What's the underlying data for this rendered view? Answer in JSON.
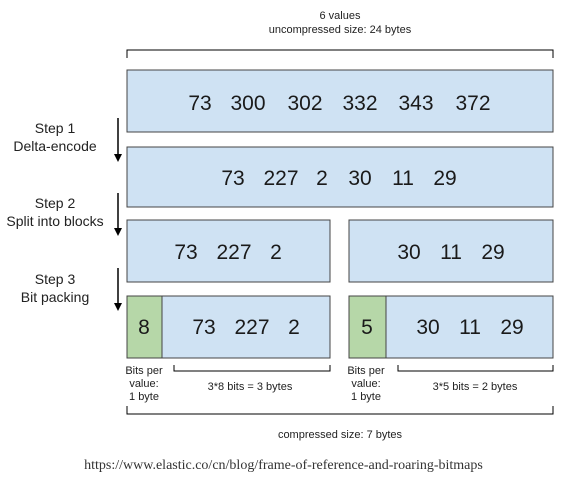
{
  "top": {
    "line1": "6 values",
    "line2": "uncompressed size: 24 bytes"
  },
  "rows": {
    "original": [
      "73",
      "300",
      "302",
      "332",
      "343",
      "372"
    ],
    "delta": [
      "73",
      "227",
      "2",
      "30",
      "11",
      "29"
    ],
    "block_left": [
      "73",
      "227",
      "2"
    ],
    "block_right": [
      "30",
      "11",
      "29"
    ]
  },
  "steps": [
    {
      "title": "Step 1",
      "desc": "Delta-encode"
    },
    {
      "title": "Step 2",
      "desc": "Split into blocks"
    },
    {
      "title": "Step 3",
      "desc": "Bit packing"
    }
  ],
  "packed": {
    "left": {
      "bits": "8",
      "values": [
        "73",
        "227",
        "2"
      ]
    },
    "right": {
      "bits": "5",
      "values": [
        "30",
        "11",
        "29"
      ]
    }
  },
  "bits_label": [
    "Bits per",
    "value:",
    "1 byte"
  ],
  "left_size": "3*8 bits = 3 bytes",
  "right_size": "3*5 bits = 2 bytes",
  "compressed": "compressed size: 7 bytes",
  "source_url": "https://www.elastic.co/cn/blog/frame-of-reference-and-roaring-bitmaps",
  "colors": {
    "box_fill": "#cfe2f3",
    "box_stroke": "#444444",
    "bits_fill": "#b6d7a8"
  }
}
